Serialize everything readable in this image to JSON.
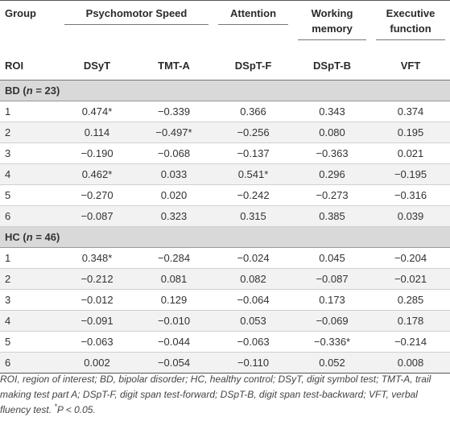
{
  "header": {
    "group_label": "Group",
    "roi_label": "ROI",
    "domains": [
      "Psychomotor Speed",
      "Attention",
      "Working memory",
      "Executive function"
    ],
    "columns": [
      "DSyT",
      "TMT-A",
      "DSpT-F",
      "DSpT-B",
      "VFT"
    ]
  },
  "groups": [
    {
      "name": "BD",
      "n_label": "n",
      "n_value": "= 23",
      "rows": [
        {
          "roi": "1",
          "vals": [
            "0.474*",
            "−0.339",
            "0.366",
            "0.343",
            "0.374"
          ]
        },
        {
          "roi": "2",
          "vals": [
            "0.114",
            "−0.497*",
            "−0.256",
            "0.080",
            "0.195"
          ]
        },
        {
          "roi": "3",
          "vals": [
            "−0.190",
            "−0.068",
            "−0.137",
            "−0.363",
            "0.021"
          ]
        },
        {
          "roi": "4",
          "vals": [
            "0.462*",
            "0.033",
            "0.541*",
            "0.296",
            "−0.195"
          ]
        },
        {
          "roi": "5",
          "vals": [
            "−0.270",
            "0.020",
            "−0.242",
            "−0.273",
            "−0.316"
          ]
        },
        {
          "roi": "6",
          "vals": [
            "−0.087",
            "0.323",
            "0.315",
            "0.385",
            "0.039"
          ]
        }
      ]
    },
    {
      "name": "HC",
      "n_label": "n",
      "n_value": "= 46",
      "rows": [
        {
          "roi": "1",
          "vals": [
            "0.348*",
            "−0.284",
            "−0.024",
            "0.045",
            "−0.204"
          ]
        },
        {
          "roi": "2",
          "vals": [
            "−0.212",
            "0.081",
            "0.082",
            "−0.087",
            "−0.021"
          ]
        },
        {
          "roi": "3",
          "vals": [
            "−0.012",
            "0.129",
            "−0.064",
            "0.173",
            "0.285"
          ]
        },
        {
          "roi": "4",
          "vals": [
            "−0.091",
            "−0.010",
            "0.053",
            "−0.069",
            "0.178"
          ]
        },
        {
          "roi": "5",
          "vals": [
            "−0.063",
            "−0.044",
            "−0.063",
            "−0.336*",
            "−0.214"
          ]
        },
        {
          "roi": "6",
          "vals": [
            "0.002",
            "−0.054",
            "−0.110",
            "0.052",
            "0.008"
          ]
        }
      ]
    }
  ],
  "footnote": {
    "text": "ROI, region of interest; BD, bipolar disorder; HC, healthy control; DSyT, digit symbol test; TMT-A, trail making test part A; DSpT-F, digit span test-forward; DSpT-B, digit span test-backward; VFT, verbal fluency test. ",
    "sup": "*",
    "tail": "P < 0.05."
  }
}
